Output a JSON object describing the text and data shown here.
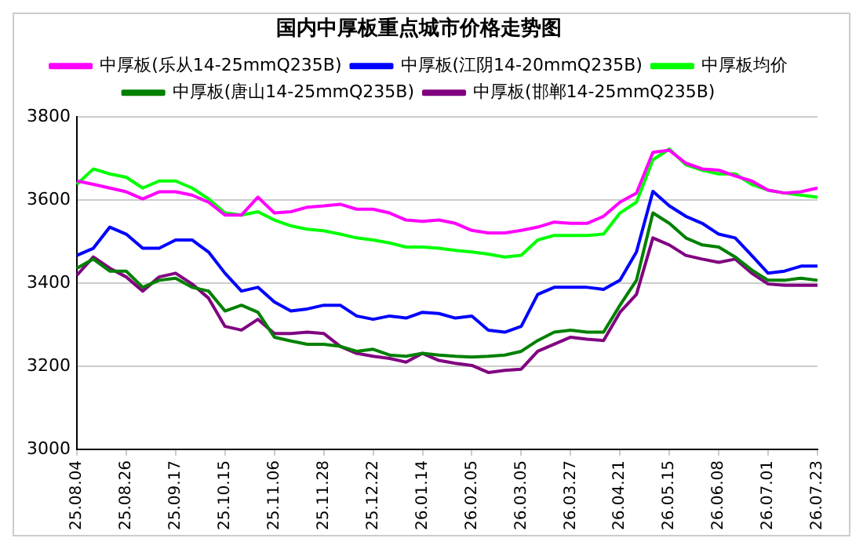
{
  "chart_data": {
    "type": "line",
    "title": "国内中厚板重点城市价格走势图",
    "categories": [
      "25.08.04",
      null,
      null,
      "25.08.26",
      null,
      null,
      "25.09.17",
      null,
      null,
      "25.10.15",
      null,
      null,
      "25.11.06",
      null,
      null,
      "25.11.28",
      null,
      null,
      "25.12.22",
      null,
      null,
      "26.01.14",
      null,
      null,
      "26.02.05",
      null,
      null,
      "26.03.05",
      null,
      null,
      "26.03.27",
      null,
      null,
      "26.04.21",
      null,
      null,
      "26.05.15",
      null,
      null,
      "26.06.08",
      null,
      null,
      "26.07.01",
      null,
      null,
      "26.07.23"
    ],
    "series": [
      {
        "name": "中厚板(乐从14-25mmQ235B)",
        "color": "#ff00ff",
        "values": [
          3646,
          3638,
          3629,
          3620,
          3603,
          3620,
          3620,
          3612,
          3595,
          3564,
          3564,
          3607,
          3569,
          3572,
          3583,
          3586,
          3590,
          3578,
          3578,
          3569,
          3552,
          3549,
          3552,
          3544,
          3527,
          3521,
          3521,
          3527,
          3535,
          3547,
          3544,
          3544,
          3561,
          3595,
          3617,
          3715,
          3720,
          3689,
          3675,
          3672,
          3658,
          3646,
          3624,
          3617,
          3620,
          3629
        ]
      },
      {
        "name": "中厚板(江阴14-20mmQ235B)",
        "color": "#0000ff",
        "values": [
          3467,
          3484,
          3535,
          3518,
          3484,
          3484,
          3504,
          3504,
          3475,
          3424,
          3381,
          3390,
          3355,
          3333,
          3338,
          3347,
          3347,
          3321,
          3313,
          3321,
          3316,
          3330,
          3327,
          3316,
          3321,
          3287,
          3282,
          3296,
          3373,
          3390,
          3390,
          3390,
          3385,
          3407,
          3475,
          3621,
          3586,
          3561,
          3544,
          3518,
          3509,
          3467,
          3424,
          3429,
          3441,
          3441
        ]
      },
      {
        "name": "中厚板均价",
        "color": "#00ff00",
        "values": [
          3638,
          3675,
          3663,
          3655,
          3629,
          3646,
          3646,
          3629,
          3603,
          3569,
          3564,
          3572,
          3552,
          3538,
          3530,
          3526,
          3518,
          3509,
          3504,
          3497,
          3487,
          3487,
          3484,
          3479,
          3475,
          3470,
          3463,
          3467,
          3504,
          3515,
          3515,
          3515,
          3518,
          3569,
          3595,
          3697,
          3723,
          3685,
          3672,
          3663,
          3663,
          3638,
          3624,
          3617,
          3612,
          3607
        ]
      },
      {
        "name": "中厚板(唐山14-25mmQ235B)",
        "color": "#008000",
        "values": [
          3436,
          3458,
          3429,
          3429,
          3390,
          3407,
          3412,
          3390,
          3381,
          3333,
          3347,
          3330,
          3270,
          3261,
          3253,
          3253,
          3248,
          3236,
          3241,
          3227,
          3224,
          3231,
          3227,
          3224,
          3222,
          3224,
          3227,
          3236,
          3262,
          3282,
          3287,
          3282,
          3282,
          3347,
          3407,
          3569,
          3544,
          3509,
          3492,
          3487,
          3463,
          3432,
          3407,
          3407,
          3412,
          3407
        ]
      },
      {
        "name": "中厚板(邯郸14-25mmQ235B)",
        "color": "#800080",
        "values": [
          3419,
          3463,
          3436,
          3415,
          3381,
          3415,
          3424,
          3398,
          3364,
          3296,
          3287,
          3313,
          3279,
          3279,
          3282,
          3279,
          3248,
          3231,
          3224,
          3219,
          3210,
          3231,
          3214,
          3207,
          3202,
          3185,
          3190,
          3193,
          3236,
          3253,
          3270,
          3265,
          3262,
          3330,
          3373,
          3509,
          3492,
          3467,
          3458,
          3450,
          3458,
          3424,
          3398,
          3395,
          3395,
          3395
        ]
      }
    ],
    "ylim": [
      3000,
      3800
    ],
    "yticks": [
      3000,
      3200,
      3400,
      3600,
      3800
    ],
    "grid": "y",
    "legend": "top",
    "marker": "none",
    "line_style": "solid"
  }
}
